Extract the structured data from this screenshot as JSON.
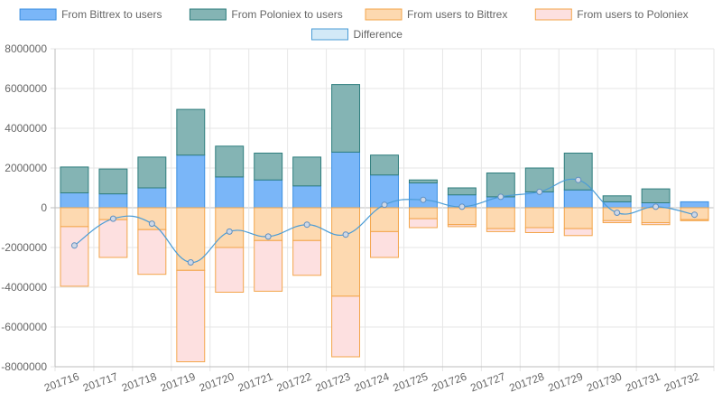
{
  "chart_data": {
    "type": "bar",
    "stacked": true,
    "categories": [
      "201716",
      "201717",
      "201718",
      "201719",
      "201720",
      "201721",
      "201722",
      "201723",
      "201724",
      "201725",
      "201726",
      "201727",
      "201728",
      "201729",
      "201730",
      "201731",
      "201732"
    ],
    "series": [
      {
        "name": "From Bittrex to users",
        "kind": "bar",
        "color": "#7ab6f8",
        "border": "#3b8fe0",
        "values": [
          750000,
          700000,
          1000000,
          2650000,
          1550000,
          1400000,
          1100000,
          2800000,
          1650000,
          1250000,
          650000,
          550000,
          800000,
          900000,
          300000,
          250000,
          300000
        ]
      },
      {
        "name": "From Poloniex to users",
        "kind": "bar",
        "color": "#84b4b4",
        "border": "#2e7d7d",
        "values": [
          1300000,
          1250000,
          1550000,
          2300000,
          1550000,
          1350000,
          1450000,
          3400000,
          1000000,
          150000,
          350000,
          1200000,
          1200000,
          1850000,
          300000,
          700000,
          0
        ]
      },
      {
        "name": "From users to Bittrex",
        "kind": "bar",
        "color": "#fdd9b0",
        "border": "#f3a54a",
        "values": [
          -950000,
          -600000,
          -1100000,
          -3150000,
          -2000000,
          -1650000,
          -1650000,
          -4450000,
          -1200000,
          -550000,
          -850000,
          -1050000,
          -1000000,
          -1050000,
          -650000,
          -750000,
          -600000
        ]
      },
      {
        "name": "From users to Poloniex",
        "kind": "bar",
        "color": "#fde0e0",
        "border": "#f3a54a",
        "values": [
          -3000000,
          -1900000,
          -2250000,
          -4600000,
          -2250000,
          -2550000,
          -1750000,
          -3050000,
          -1300000,
          -450000,
          -100000,
          -150000,
          -250000,
          -350000,
          -100000,
          -100000,
          -50000
        ]
      },
      {
        "name": "Difference",
        "kind": "line",
        "color": "#d2e9f7",
        "border": "#4a9cd6",
        "values": [
          -1900000,
          -550000,
          -800000,
          -2750000,
          -1200000,
          -1450000,
          -850000,
          -1350000,
          150000,
          400000,
          50000,
          550000,
          800000,
          1400000,
          -250000,
          50000,
          -350000
        ]
      }
    ],
    "ylim": [
      -8000000,
      8000000
    ],
    "yticks": [
      8000000,
      6000000,
      4000000,
      2000000,
      0,
      -2000000,
      -4000000,
      -6000000,
      -8000000
    ],
    "ytick_labels": [
      "8000000",
      "6000000",
      "4000000",
      "2000000",
      "0",
      "-2000000",
      "-4000000",
      "-6000000",
      "-8000000"
    ],
    "grid": true,
    "legend_position": "top"
  }
}
